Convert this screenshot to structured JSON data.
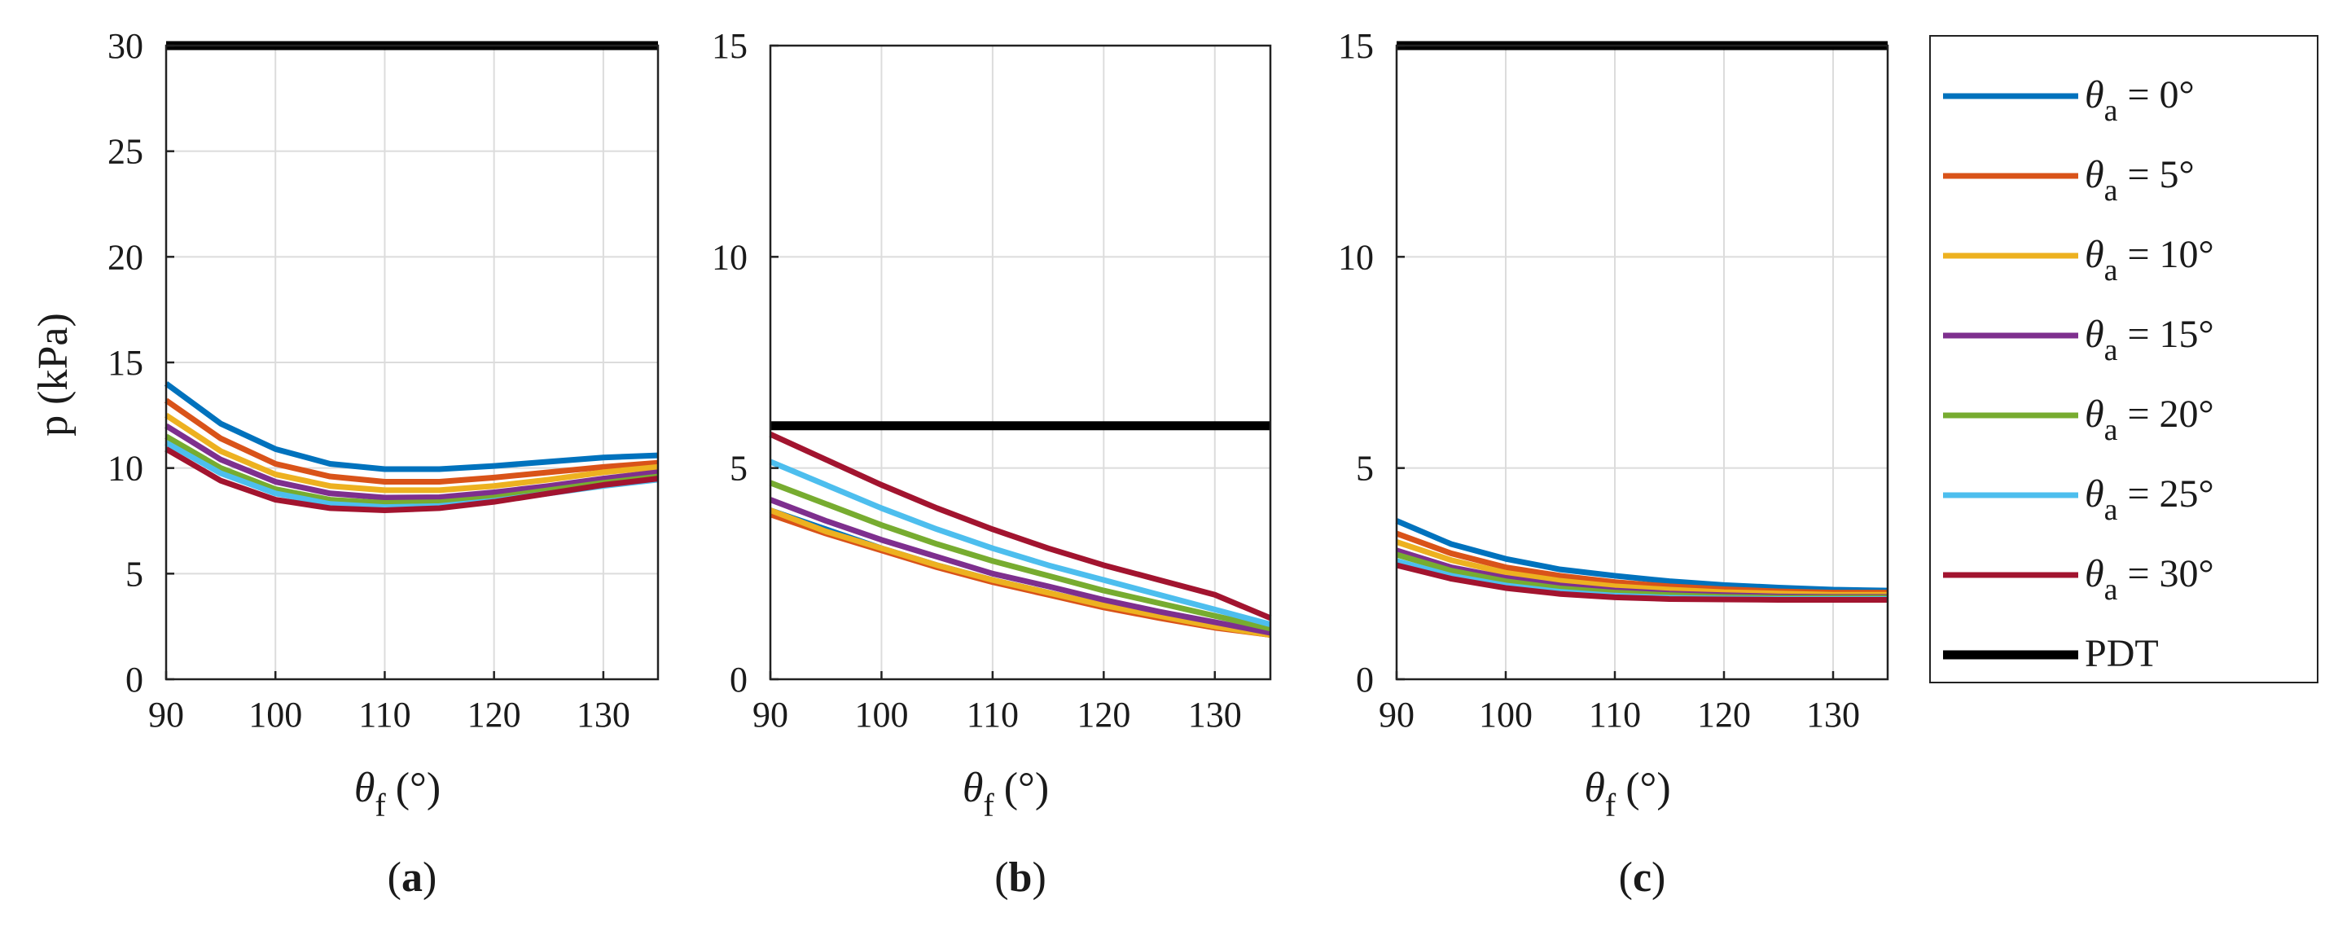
{
  "figure": {
    "y_label": "p (kPa)",
    "x_label_symbol": "θ",
    "x_label_subscript": "f",
    "x_label_unit": "(°)"
  },
  "legend": {
    "entries": [
      {
        "symbol": "θ",
        "subscript": "a",
        "text": " = 0°",
        "color": "#0072BD"
      },
      {
        "symbol": "θ",
        "subscript": "a",
        "text": " = 5°",
        "color": "#D95319"
      },
      {
        "symbol": "θ",
        "subscript": "a",
        "text": " = 10°",
        "color": "#EDB120"
      },
      {
        "symbol": "θ",
        "subscript": "a",
        "text": " = 15°",
        "color": "#7E2F8E"
      },
      {
        "symbol": "θ",
        "subscript": "a",
        "text": " = 20°",
        "color": "#77AC30"
      },
      {
        "symbol": "θ",
        "subscript": "a",
        "text": " = 25°",
        "color": "#4DBEEE"
      },
      {
        "symbol": "θ",
        "subscript": "a",
        "text": " = 30°",
        "color": "#A2142F"
      },
      {
        "symbol": "",
        "subscript": "",
        "text": "PDT",
        "color": "#000000"
      }
    ]
  },
  "chart_data": [
    {
      "type": "line",
      "panel": "a",
      "label_open": "(",
      "label_letter": "a",
      "label_close": ")",
      "xlim": [
        90,
        135
      ],
      "ylim": [
        0,
        30
      ],
      "xticks": [
        90,
        100,
        110,
        120,
        130
      ],
      "yticks": [
        0,
        5,
        10,
        15,
        20,
        25,
        30
      ],
      "grid": true,
      "x": [
        90,
        95,
        100,
        105,
        110,
        115,
        120,
        125,
        130,
        135
      ],
      "series": [
        {
          "name": "θa = 0°",
          "color": "#0072BD",
          "values": [
            14.0,
            12.1,
            10.9,
            10.2,
            9.95,
            9.95,
            10.1,
            10.3,
            10.5,
            10.6
          ]
        },
        {
          "name": "θa = 5°",
          "color": "#D95319",
          "values": [
            13.2,
            11.4,
            10.2,
            9.6,
            9.35,
            9.35,
            9.55,
            9.8,
            10.05,
            10.25
          ]
        },
        {
          "name": "θa = 10°",
          "color": "#EDB120",
          "values": [
            12.5,
            10.8,
            9.7,
            9.15,
            8.95,
            8.95,
            9.15,
            9.45,
            9.8,
            10.05
          ]
        },
        {
          "name": "θa = 15°",
          "color": "#7E2F8E",
          "values": [
            12.0,
            10.4,
            9.35,
            8.8,
            8.6,
            8.62,
            8.85,
            9.15,
            9.5,
            9.8
          ]
        },
        {
          "name": "θa = 20°",
          "color": "#77AC30",
          "values": [
            11.5,
            10.0,
            9.0,
            8.5,
            8.35,
            8.38,
            8.6,
            8.95,
            9.3,
            9.6
          ]
        },
        {
          "name": "θa = 25°",
          "color": "#4DBEEE",
          "values": [
            11.2,
            9.75,
            8.8,
            8.3,
            8.15,
            8.2,
            8.45,
            8.8,
            9.15,
            9.45
          ]
        },
        {
          "name": "θa = 30°",
          "color": "#A2142F",
          "values": [
            10.9,
            9.4,
            8.5,
            8.1,
            8.0,
            8.1,
            8.4,
            8.8,
            9.2,
            9.5
          ]
        },
        {
          "name": "PDT",
          "color": "#000000",
          "values": [
            30,
            30,
            30,
            30,
            30,
            30,
            30,
            30,
            30,
            30
          ]
        }
      ]
    },
    {
      "type": "line",
      "panel": "b",
      "label_open": "(",
      "label_letter": "b",
      "label_close": ")",
      "xlim": [
        90,
        135
      ],
      "ylim": [
        0,
        15
      ],
      "xticks": [
        90,
        100,
        110,
        120,
        130
      ],
      "yticks": [
        0,
        5,
        10,
        15
      ],
      "grid": true,
      "x": [
        90,
        95,
        100,
        105,
        110,
        115,
        120,
        125,
        130,
        135
      ],
      "series": [
        {
          "name": "θa = 0°",
          "color": "#0072BD",
          "values": [
            4.0,
            3.55,
            3.1,
            2.7,
            2.35,
            2.05,
            1.75,
            1.5,
            1.25,
            1.05
          ]
        },
        {
          "name": "θa = 5°",
          "color": "#D95319",
          "values": [
            3.9,
            3.45,
            3.05,
            2.65,
            2.3,
            2.0,
            1.7,
            1.45,
            1.22,
            1.05
          ]
        },
        {
          "name": "θa = 10°",
          "color": "#EDB120",
          "values": [
            4.0,
            3.5,
            3.1,
            2.7,
            2.35,
            2.05,
            1.75,
            1.5,
            1.25,
            1.05
          ]
        },
        {
          "name": "θa = 15°",
          "color": "#7E2F8E",
          "values": [
            4.25,
            3.75,
            3.3,
            2.9,
            2.5,
            2.2,
            1.88,
            1.6,
            1.35,
            1.1
          ]
        },
        {
          "name": "θa = 20°",
          "color": "#77AC30",
          "values": [
            4.65,
            4.15,
            3.65,
            3.2,
            2.8,
            2.45,
            2.1,
            1.8,
            1.5,
            1.2
          ]
        },
        {
          "name": "θa = 25°",
          "color": "#4DBEEE",
          "values": [
            5.15,
            4.6,
            4.05,
            3.55,
            3.1,
            2.7,
            2.35,
            2.0,
            1.65,
            1.3
          ]
        },
        {
          "name": "θa = 30°",
          "color": "#A2142F",
          "values": [
            5.8,
            5.2,
            4.6,
            4.05,
            3.55,
            3.1,
            2.7,
            2.35,
            2.0,
            1.45
          ]
        },
        {
          "name": "PDT",
          "color": "#000000",
          "values": [
            6,
            6,
            6,
            6,
            6,
            6,
            6,
            6,
            6,
            6
          ]
        }
      ]
    },
    {
      "type": "line",
      "panel": "c",
      "label_open": "(",
      "label_letter": "c",
      "label_close": ")",
      "xlim": [
        90,
        135
      ],
      "ylim": [
        0,
        15
      ],
      "xticks": [
        90,
        100,
        110,
        120,
        130
      ],
      "yticks": [
        0,
        5,
        10,
        15
      ],
      "grid": true,
      "x": [
        90,
        95,
        100,
        105,
        110,
        115,
        120,
        125,
        130,
        135
      ],
      "series": [
        {
          "name": "θa = 0°",
          "color": "#0072BD",
          "values": [
            3.75,
            3.2,
            2.85,
            2.6,
            2.45,
            2.32,
            2.23,
            2.17,
            2.12,
            2.1
          ]
        },
        {
          "name": "θa = 5°",
          "color": "#D95319",
          "values": [
            3.45,
            2.98,
            2.65,
            2.45,
            2.3,
            2.2,
            2.13,
            2.08,
            2.05,
            2.05
          ]
        },
        {
          "name": "θa = 10°",
          "color": "#EDB120",
          "values": [
            3.25,
            2.82,
            2.52,
            2.33,
            2.2,
            2.12,
            2.06,
            2.03,
            2.0,
            2.0
          ]
        },
        {
          "name": "θa = 15°",
          "color": "#7E2F8E",
          "values": [
            3.05,
            2.65,
            2.4,
            2.22,
            2.1,
            2.03,
            1.99,
            1.96,
            1.95,
            1.95
          ]
        },
        {
          "name": "θa = 20°",
          "color": "#77AC30",
          "values": [
            2.95,
            2.57,
            2.32,
            2.15,
            2.05,
            1.99,
            1.95,
            1.93,
            1.93,
            1.93
          ]
        },
        {
          "name": "θa = 25°",
          "color": "#4DBEEE",
          "values": [
            2.8,
            2.45,
            2.22,
            2.07,
            1.98,
            1.93,
            1.91,
            1.9,
            1.9,
            1.9
          ]
        },
        {
          "name": "θa = 30°",
          "color": "#A2142F",
          "values": [
            2.7,
            2.38,
            2.16,
            2.02,
            1.94,
            1.9,
            1.89,
            1.88,
            1.88,
            1.88
          ]
        },
        {
          "name": "PDT",
          "color": "#000000",
          "values": [
            15,
            15,
            15,
            15,
            15,
            15,
            15,
            15,
            15,
            15
          ]
        }
      ]
    }
  ]
}
